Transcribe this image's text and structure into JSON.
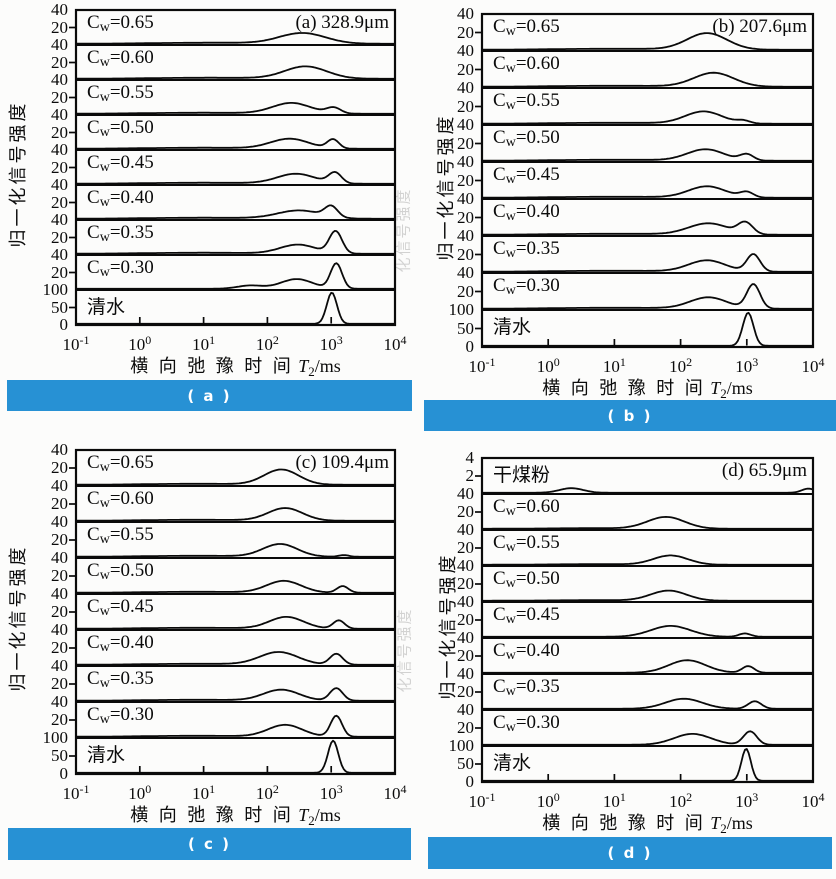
{
  "figure_bg": "#fcfcfb",
  "banner_color": "#2791d4",
  "line_color": "#0a0a0a",
  "ylabel": "归一化信号强度",
  "ghost_ylabel": "化信号强度",
  "xlabel_cn": "横 向 弛 豫 时 间",
  "xlabel_unit": {
    "sym": "T",
    "sub": "2",
    "rest": "/ms"
  },
  "x_ticks": [
    {
      "base": "10",
      "exp": "-1"
    },
    {
      "base": "10",
      "exp": "0"
    },
    {
      "base": "10",
      "exp": "1"
    },
    {
      "base": "10",
      "exp": "2"
    },
    {
      "base": "10",
      "exp": "3"
    },
    {
      "base": "10",
      "exp": "4"
    }
  ],
  "chart_data": [
    {
      "id": "a",
      "type": "line",
      "title": "(a) 328.9μm",
      "banner": "( a )",
      "x_axis": {
        "scale": "log",
        "unit": "ms",
        "range": [
          0.1,
          10000
        ]
      },
      "y_axis": {
        "label": "归一化信号强度"
      },
      "rows": [
        {
          "label": "Cw=0.65",
          "ymax": 40,
          "yticks": [
            "40",
            "20"
          ],
          "peaks_c_s_a": [
            [
              2.55,
              0.36,
              13
            ],
            [
              1.1,
              0.9,
              1.3
            ]
          ]
        },
        {
          "label": "Cw=0.60",
          "ymax": 40,
          "yticks": [
            "40",
            "20"
          ],
          "peaks_c_s_a": [
            [
              2.6,
              0.33,
              15
            ],
            [
              1.1,
              0.9,
              1.3
            ]
          ]
        },
        {
          "label": "Cw=0.55",
          "ymax": 40,
          "yticks": [
            "40",
            "20"
          ],
          "peaks_c_s_a": [
            [
              2.38,
              0.3,
              13
            ],
            [
              3.04,
              0.11,
              7
            ],
            [
              1.0,
              0.9,
              1.3
            ]
          ]
        },
        {
          "label": "Cw=0.50",
          "ymax": 40,
          "yticks": [
            "40",
            "20"
          ],
          "peaks_c_s_a": [
            [
              2.35,
              0.3,
              12
            ],
            [
              3.03,
              0.09,
              11
            ],
            [
              1.0,
              0.9,
              1.3
            ]
          ]
        },
        {
          "label": "Cw=0.45",
          "ymax": 40,
          "yticks": [
            "40",
            "20"
          ],
          "peaks_c_s_a": [
            [
              2.45,
              0.3,
              12
            ],
            [
              3.06,
              0.1,
              13
            ],
            [
              1.0,
              0.9,
              1.3
            ]
          ]
        },
        {
          "label": "Cw=0.40",
          "ymax": 40,
          "yticks": [
            "40",
            "20"
          ],
          "peaks_c_s_a": [
            [
              2.5,
              0.34,
              10
            ],
            [
              3.0,
              0.1,
              13
            ],
            [
              1.0,
              0.9,
              1.3
            ]
          ]
        },
        {
          "label": "Cw=0.35",
          "ymax": 40,
          "yticks": [
            "40",
            "20"
          ],
          "peaks_c_s_a": [
            [
              2.48,
              0.28,
              11
            ],
            [
              3.07,
              0.1,
              27
            ],
            [
              1.0,
              0.9,
              1.3
            ]
          ]
        },
        {
          "label": "Cw=0.30",
          "ymax": 40,
          "yticks": [
            "40",
            "20"
          ],
          "peaks_c_s_a": [
            [
              1.73,
              0.2,
              4
            ],
            [
              2.46,
              0.25,
              12
            ],
            [
              3.08,
              0.09,
              31
            ]
          ]
        },
        {
          "label": "清水",
          "ymax": 100,
          "yticks": [
            "100",
            "50",
            "0"
          ],
          "peaks_c_s_a": [
            [
              3.01,
              0.08,
              96
            ]
          ]
        }
      ]
    },
    {
      "id": "b",
      "type": "line",
      "title": "(b) 207.6μm",
      "banner": "( b )",
      "x_axis": {
        "scale": "log",
        "unit": "ms",
        "range": [
          0.1,
          10000
        ]
      },
      "y_axis": {
        "label": "归一化信号强度"
      },
      "rows": [
        {
          "label": "Cw=0.65",
          "ymax": 40,
          "yticks": [
            "40",
            "20"
          ],
          "peaks_c_s_a": [
            [
              2.4,
              0.3,
              19
            ],
            [
              1.0,
              0.9,
              1.2
            ]
          ]
        },
        {
          "label": "Cw=0.60",
          "ymax": 40,
          "yticks": [
            "40",
            "20"
          ],
          "peaks_c_s_a": [
            [
              2.5,
              0.3,
              16
            ],
            [
              1.0,
              0.9,
              1.2
            ]
          ]
        },
        {
          "label": "Cw=0.55",
          "ymax": 40,
          "yticks": [
            "40",
            "20"
          ],
          "peaks_c_s_a": [
            [
              2.35,
              0.28,
              14
            ],
            [
              2.95,
              0.1,
              3
            ],
            [
              1.0,
              0.9,
              1.2
            ]
          ]
        },
        {
          "label": "Cw=0.50",
          "ymax": 40,
          "yticks": [
            "40",
            "20"
          ],
          "peaks_c_s_a": [
            [
              2.38,
              0.28,
              13
            ],
            [
              3.0,
              0.1,
              7
            ],
            [
              1.0,
              0.9,
              1.2
            ]
          ]
        },
        {
          "label": "Cw=0.45",
          "ymax": 40,
          "yticks": [
            "40",
            "20"
          ],
          "peaks_c_s_a": [
            [
              2.4,
              0.28,
              13
            ],
            [
              3.0,
              0.1,
              6
            ],
            [
              1.0,
              0.9,
              1.2
            ]
          ]
        },
        {
          "label": "Cw=0.40",
          "ymax": 40,
          "yticks": [
            "40",
            "20"
          ],
          "peaks_c_s_a": [
            [
              2.42,
              0.3,
              13
            ],
            [
              2.98,
              0.11,
              13
            ],
            [
              1.0,
              0.9,
              1.2
            ]
          ]
        },
        {
          "label": "Cw=0.35",
          "ymax": 40,
          "yticks": [
            "40",
            "20"
          ],
          "peaks_c_s_a": [
            [
              2.4,
              0.28,
              13
            ],
            [
              3.1,
              0.1,
              20
            ],
            [
              1.0,
              0.9,
              1.2
            ]
          ]
        },
        {
          "label": "Cw=0.30",
          "ymax": 40,
          "yticks": [
            "40",
            "20"
          ],
          "peaks_c_s_a": [
            [
              2.42,
              0.28,
              13
            ],
            [
              3.1,
              0.1,
              28
            ],
            [
              1.0,
              0.9,
              1.2
            ]
          ]
        },
        {
          "label": "清水",
          "ymax": 100,
          "yticks": [
            "100",
            "50",
            "0"
          ],
          "peaks_c_s_a": [
            [
              3.02,
              0.08,
              96
            ]
          ]
        }
      ]
    },
    {
      "id": "c",
      "type": "line",
      "title": "(c) 109.4μm",
      "banner": "( c )",
      "x_axis": {
        "scale": "log",
        "unit": "ms",
        "range": [
          0.1,
          10000
        ]
      },
      "y_axis": {
        "label": "归一化信号强度"
      },
      "rows": [
        {
          "label": "Cw=0.65",
          "ymax": 40,
          "yticks": [
            "40",
            "20"
          ],
          "peaks_c_s_a": [
            [
              2.22,
              0.27,
              18
            ],
            [
              0.9,
              0.8,
              1.2
            ]
          ]
        },
        {
          "label": "Cw=0.60",
          "ymax": 40,
          "yticks": [
            "40",
            "20"
          ],
          "peaks_c_s_a": [
            [
              2.28,
              0.27,
              15
            ],
            [
              0.9,
              0.8,
              1.2
            ]
          ]
        },
        {
          "label": "Cw=0.55",
          "ymax": 40,
          "yticks": [
            "40",
            "20"
          ],
          "peaks_c_s_a": [
            [
              2.2,
              0.27,
              15
            ],
            [
              3.2,
              0.08,
              2
            ],
            [
              0.9,
              0.8,
              1.2
            ]
          ]
        },
        {
          "label": "Cw=0.50",
          "ymax": 40,
          "yticks": [
            "40",
            "20"
          ],
          "peaks_c_s_a": [
            [
              2.26,
              0.27,
              14
            ],
            [
              3.18,
              0.09,
              8
            ],
            [
              0.9,
              0.8,
              1.2
            ]
          ]
        },
        {
          "label": "Cw=0.45",
          "ymax": 40,
          "yticks": [
            "40",
            "20"
          ],
          "peaks_c_s_a": [
            [
              2.3,
              0.27,
              14
            ],
            [
              3.12,
              0.09,
              10
            ],
            [
              0.9,
              0.8,
              1.2
            ]
          ]
        },
        {
          "label": "Cw=0.40",
          "ymax": 40,
          "yticks": [
            "40",
            "20"
          ],
          "peaks_c_s_a": [
            [
              2.18,
              0.3,
              15
            ],
            [
              3.08,
              0.1,
              13
            ],
            [
              0.9,
              0.8,
              1.2
            ]
          ]
        },
        {
          "label": "Cw=0.35",
          "ymax": 40,
          "yticks": [
            "40",
            "20"
          ],
          "peaks_c_s_a": [
            [
              2.22,
              0.28,
              13
            ],
            [
              3.08,
              0.1,
              15
            ],
            [
              0.9,
              0.8,
              1.2
            ]
          ]
        },
        {
          "label": "Cw=0.30",
          "ymax": 40,
          "yticks": [
            "40",
            "20"
          ],
          "peaks_c_s_a": [
            [
              2.28,
              0.27,
              14
            ],
            [
              3.08,
              0.09,
              25
            ],
            [
              0.9,
              0.8,
              1.2
            ]
          ]
        },
        {
          "label": "清水",
          "ymax": 100,
          "yticks": [
            "100",
            "50",
            "0"
          ],
          "peaks_c_s_a": [
            [
              3.03,
              0.08,
              96
            ]
          ]
        }
      ]
    },
    {
      "id": "d",
      "type": "line",
      "title": "(d) 65.9μm",
      "banner": "( d )",
      "x_axis": {
        "scale": "log",
        "unit": "ms",
        "range": [
          0.1,
          10000
        ]
      },
      "y_axis": {
        "label": "归一化信号强度"
      },
      "rows": [
        {
          "label": "干煤粉",
          "ymax": 4,
          "yticks": [
            "4",
            "2"
          ],
          "peaks_c_s_a": [
            [
              0.35,
              0.18,
              0.55
            ],
            [
              3.93,
              0.1,
              0.5
            ]
          ]
        },
        {
          "label": "Cw=0.60",
          "ymax": 40,
          "yticks": [
            "40",
            "20"
          ],
          "peaks_c_s_a": [
            [
              1.78,
              0.28,
              14
            ],
            [
              0.7,
              0.7,
              0.7
            ]
          ]
        },
        {
          "label": "Cw=0.55",
          "ymax": 40,
          "yticks": [
            "40",
            "20"
          ],
          "peaks_c_s_a": [
            [
              1.85,
              0.26,
              11
            ],
            [
              0.7,
              0.7,
              0.7
            ]
          ]
        },
        {
          "label": "Cw=0.50",
          "ymax": 40,
          "yticks": [
            "40",
            "20"
          ],
          "peaks_c_s_a": [
            [
              1.82,
              0.27,
              12
            ],
            [
              0.7,
              0.7,
              0.7
            ]
          ]
        },
        {
          "label": "Cw=0.45",
          "ymax": 40,
          "yticks": [
            "40",
            "20"
          ],
          "peaks_c_s_a": [
            [
              1.85,
              0.3,
              13
            ],
            [
              2.97,
              0.09,
              4
            ]
          ]
        },
        {
          "label": "Cw=0.40",
          "ymax": 40,
          "yticks": [
            "40",
            "20"
          ],
          "peaks_c_s_a": [
            [
              2.1,
              0.28,
              15
            ],
            [
              3.02,
              0.09,
              8
            ]
          ]
        },
        {
          "label": "Cw=0.35",
          "ymax": 40,
          "yticks": [
            "40",
            "20"
          ],
          "peaks_c_s_a": [
            [
              2.05,
              0.28,
              12
            ],
            [
              3.12,
              0.1,
              9
            ]
          ]
        },
        {
          "label": "Cw=0.30",
          "ymax": 40,
          "yticks": [
            "40",
            "20"
          ],
          "peaks_c_s_a": [
            [
              2.18,
              0.28,
              13
            ],
            [
              3.05,
              0.1,
              16
            ]
          ]
        },
        {
          "label": "清水",
          "ymax": 100,
          "yticks": [
            "100",
            "50",
            "0"
          ],
          "peaks_c_s_a": [
            [
              2.99,
              0.07,
              96
            ]
          ]
        }
      ]
    }
  ]
}
